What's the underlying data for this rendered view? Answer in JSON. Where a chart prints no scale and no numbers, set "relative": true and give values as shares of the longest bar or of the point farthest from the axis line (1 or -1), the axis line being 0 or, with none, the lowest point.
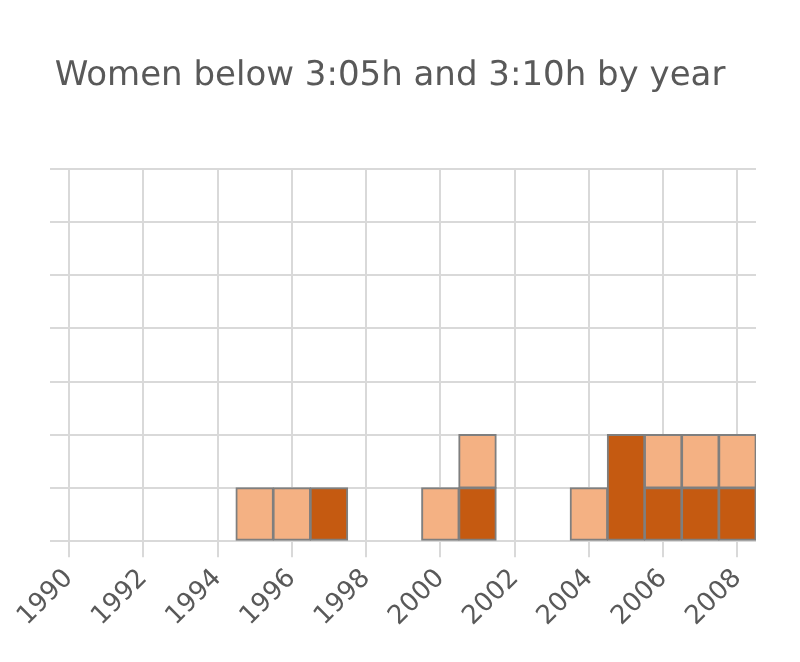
{
  "chart_data": {
    "type": "bar",
    "title": "Women below 3:05h and 3:10h by year",
    "relative": true,
    "stacked": true,
    "x": [
      1995,
      1996,
      1997,
      2000,
      2001,
      2004,
      2005,
      2006,
      2007,
      2008
    ],
    "xlim": [
      1989.5,
      2008.5
    ],
    "xticks": [
      1990,
      1992,
      1994,
      1996,
      1998,
      2000,
      2002,
      2004,
      2006,
      2008
    ],
    "series": [
      {
        "color": "#c55a11",
        "values": [
          null,
          null,
          0.5,
          null,
          0.5,
          null,
          1,
          0.5,
          0.5,
          0.5
        ]
      },
      {
        "color": "#f4b183",
        "values": [
          0.5,
          0.5,
          null,
          0.5,
          0.5,
          0.5,
          null,
          0.5,
          0.5,
          0.5
        ]
      }
    ],
    "grid": true,
    "legend": false
  }
}
